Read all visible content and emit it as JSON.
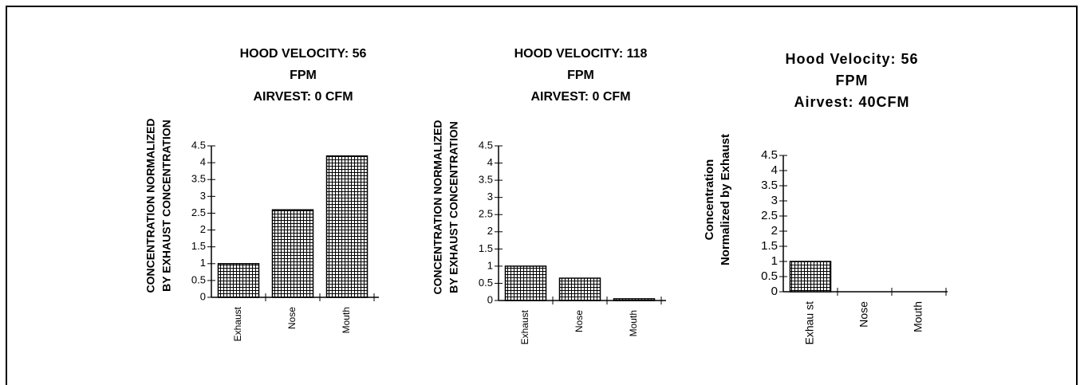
{
  "chart_data": [
    {
      "type": "bar",
      "title": [
        "HOOD VELOCITY: 56",
        "FPM",
        "AIRVEST: 0 CFM"
      ],
      "y_label": [
        "CONCENTRATION NORMALIZED",
        "BY EXHAUST CONCENTRATION"
      ],
      "categories": [
        "Exhaust",
        "Nose",
        "Mouth"
      ],
      "values": [
        1,
        2.6,
        4.2
      ],
      "ylim": [
        0,
        4.5
      ],
      "yticks": [
        0,
        0.5,
        1,
        1.5,
        2,
        2.5,
        3,
        3.5,
        4,
        4.5
      ],
      "color": "#000000"
    },
    {
      "type": "bar",
      "title": [
        "HOOD VELOCITY: 118",
        "FPM",
        "AIRVEST: 0 CFM"
      ],
      "y_label": [
        "CONCENTRATION NORMALIZED",
        "BY EXHAUST CONCENTRATION"
      ],
      "categories": [
        "Exhaust",
        "Nose",
        "Mouth"
      ],
      "values": [
        1,
        0.65,
        0.05
      ],
      "ylim": [
        0,
        4.5
      ],
      "yticks": [
        0,
        0.5,
        1,
        1.5,
        2,
        2.5,
        3,
        3.5,
        4,
        4.5
      ],
      "color": "#000000"
    },
    {
      "type": "bar",
      "title": [
        "Hood Velocity: 56",
        "FPM",
        "Airvest: 40CFM"
      ],
      "y_label": [
        "Concentration",
        "Normalized by Exhaust"
      ],
      "categories": [
        "Exhau st",
        "Nose",
        "Mouth"
      ],
      "values": [
        1,
        0,
        0
      ],
      "ylim": [
        0,
        4.5
      ],
      "yticks": [
        0,
        0.5,
        1,
        1.5,
        2,
        2.5,
        3,
        3.5,
        4,
        4.5
      ],
      "color": "#000000"
    }
  ]
}
